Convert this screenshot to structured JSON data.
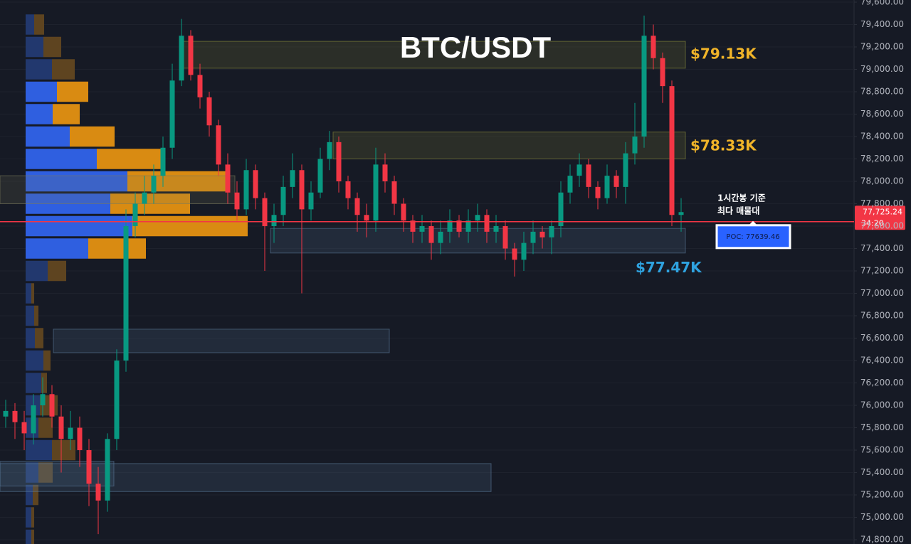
{
  "chart_data": {
    "type": "candlestick",
    "title": "BTC/USDT",
    "up_color": "#089981",
    "down_color": "#f23645",
    "open": [
      75900,
      75950,
      75850,
      75750,
      76000,
      76100,
      75900,
      75700,
      75800,
      75600,
      75300,
      75150,
      75700,
      76400,
      77600,
      77800,
      77900,
      78050,
      78300,
      78900,
      79300,
      78950,
      78750,
      78500,
      78150,
      77900,
      77750,
      78100,
      77850,
      77600,
      77700,
      77950,
      78100,
      77750,
      77900,
      78200,
      78350,
      78000,
      77850,
      77700,
      77650,
      78150,
      78000,
      77800,
      77650,
      77550,
      77600,
      77450,
      77550,
      77650,
      77550,
      77650,
      77700,
      77550,
      77600,
      77400,
      77300,
      77450,
      77550,
      77500,
      77600,
      77900,
      78050,
      78150,
      77950,
      77850,
      78050,
      77950,
      78250,
      78400,
      79300,
      79100,
      78850,
      77700
    ],
    "high": [
      76050,
      76020,
      75950,
      76100,
      76250,
      76180,
      76000,
      75950,
      75900,
      75700,
      75450,
      75750,
      76500,
      77750,
      77900,
      78050,
      78150,
      78400,
      79050,
      79450,
      79350,
      79050,
      78800,
      78550,
      78250,
      78000,
      78200,
      78150,
      77900,
      77800,
      78050,
      78250,
      78150,
      78000,
      78300,
      78450,
      78400,
      78050,
      77900,
      77800,
      78300,
      78250,
      78050,
      77850,
      77700,
      77700,
      77650,
      77650,
      77750,
      77700,
      77750,
      77800,
      77750,
      77700,
      77650,
      77450,
      77550,
      77650,
      77600,
      77650,
      78000,
      78150,
      78250,
      78200,
      78000,
      78150,
      78100,
      78350,
      78700,
      79480,
      79400,
      79150,
      78900,
      77850
    ],
    "low": [
      75800,
      75700,
      75600,
      75650,
      75900,
      75800,
      75400,
      75600,
      75450,
      75100,
      74850,
      75050,
      75600,
      76300,
      77500,
      77700,
      77800,
      77950,
      78200,
      78850,
      78900,
      78650,
      78400,
      78050,
      77800,
      77650,
      77700,
      77750,
      77200,
      77450,
      77600,
      77850,
      77000,
      77650,
      77850,
      78100,
      77900,
      77750,
      77550,
      77500,
      77550,
      77900,
      77700,
      77550,
      77450,
      77450,
      77300,
      77350,
      77450,
      77500,
      77450,
      77550,
      77450,
      77450,
      77300,
      77150,
      77200,
      77350,
      77400,
      77350,
      77500,
      77800,
      77950,
      77850,
      77750,
      77800,
      77850,
      77800,
      78150,
      78300,
      79000,
      78700,
      77600,
      77550
    ],
    "close": [
      75950,
      75850,
      75750,
      76000,
      76100,
      75900,
      75700,
      75800,
      75600,
      75300,
      75150,
      75700,
      76400,
      77600,
      77800,
      77900,
      78050,
      78300,
      78900,
      79300,
      78950,
      78750,
      78500,
      78150,
      77900,
      77750,
      78100,
      77850,
      77600,
      77700,
      77950,
      78100,
      77750,
      77900,
      78200,
      78350,
      78000,
      77850,
      77700,
      77650,
      78150,
      78000,
      77800,
      77650,
      77550,
      77600,
      77450,
      77550,
      77650,
      77550,
      77650,
      77700,
      77550,
      77600,
      77400,
      77300,
      77450,
      77550,
      77500,
      77600,
      77900,
      78050,
      78150,
      77950,
      77850,
      78050,
      77950,
      78250,
      78400,
      79300,
      79100,
      78850,
      77700,
      77725.24
    ],
    "ylim": [
      74762,
      79619
    ],
    "yticks": [
      {
        "value": 79600,
        "label": "79,600.00"
      },
      {
        "value": 79400,
        "label": "79,400.00"
      },
      {
        "value": 79200,
        "label": "79,200.00"
      },
      {
        "value": 79000,
        "label": "79,000.00"
      },
      {
        "value": 78800,
        "label": "78,800.00"
      },
      {
        "value": 78600,
        "label": "78,600.00"
      },
      {
        "value": 78400,
        "label": "78,400.00"
      },
      {
        "value": 78200,
        "label": "78,200.00"
      },
      {
        "value": 78000,
        "label": "78,000.00"
      },
      {
        "value": 77800,
        "label": "77,800.00"
      },
      {
        "value": 77600,
        "label": "77,600.00"
      },
      {
        "value": 77400,
        "label": "77,400.00"
      },
      {
        "value": 77200,
        "label": "77,200.00"
      },
      {
        "value": 77000,
        "label": "77,000.00"
      },
      {
        "value": 76800,
        "label": "76,800.00"
      },
      {
        "value": 76600,
        "label": "76,600.00"
      },
      {
        "value": 76400,
        "label": "76,400.00"
      },
      {
        "value": 76200,
        "label": "76,200.00"
      },
      {
        "value": 76000,
        "label": "76,000.00"
      },
      {
        "value": 75800,
        "label": "75,800.00"
      },
      {
        "value": 75600,
        "label": "75,600.00"
      },
      {
        "value": 75400,
        "label": "75,400.00"
      },
      {
        "value": 75200,
        "label": "75,200.00"
      },
      {
        "value": 75000,
        "label": "75,000.00"
      },
      {
        "value": 74800,
        "label": "74,800.00"
      }
    ],
    "grid": true,
    "volume_profile": {
      "prices": [
        79400,
        79200,
        79000,
        78800,
        78600,
        78400,
        78200,
        78000,
        77800,
        77600,
        77400,
        77200,
        77000,
        76800,
        76600,
        76400,
        76200,
        76000,
        75800,
        75600,
        75400,
        75200,
        75000,
        74800
      ],
      "up": [
        12,
        25,
        37,
        44,
        38,
        62,
        100,
        143,
        119,
        150,
        88,
        31,
        8,
        12,
        13,
        25,
        22,
        20,
        18,
        37,
        18,
        10,
        8,
        8
      ],
      "down": [
        14,
        25,
        32,
        44,
        38,
        63,
        95,
        138,
        112,
        162,
        81,
        26,
        4,
        6,
        12,
        10,
        8,
        25,
        20,
        33,
        20,
        8,
        4,
        4
      ],
      "value_area": [
        77300,
        78900
      ],
      "up_color": "#2f5fe0",
      "down_color": "#d98b12",
      "up_color_outside": "#22386e",
      "down_color_outside": "#5e4420"
    },
    "zones": [
      {
        "low": 79010,
        "high": 79250,
        "color": "#8a8a3a"
      },
      {
        "low": 78200,
        "high": 78440,
        "color": "#8a8a3a"
      },
      {
        "low": 77360,
        "high": 77580,
        "color": "#5a7a9a"
      },
      {
        "low": 77800,
        "high": 78050,
        "color": "#7a7a5a"
      },
      {
        "low": 76470,
        "high": 76680,
        "color": "#5a7a9a"
      },
      {
        "low": 75230,
        "high": 75480,
        "color": "#5a7a9a"
      },
      {
        "low": 75280,
        "high": 75500,
        "color": "#5a7a9a"
      }
    ],
    "levels": [
      {
        "value": 79130,
        "label": "$79.13K",
        "color": "#f0b429"
      },
      {
        "value": 78330,
        "label": "$78.33K",
        "color": "#f0b429"
      },
      {
        "value": 77470,
        "label": "$77.47K",
        "color": "#2fa3e0"
      }
    ],
    "current_price": {
      "value": 77725.24,
      "label": "77,725.24",
      "countdown": "34:20",
      "color": "#f23645"
    },
    "poc": {
      "value": 77639.46,
      "label": "POC: 77639.46",
      "color": "#2962ff"
    },
    "annotation": [
      "1시간봉 기준",
      "최다 매물대"
    ]
  }
}
